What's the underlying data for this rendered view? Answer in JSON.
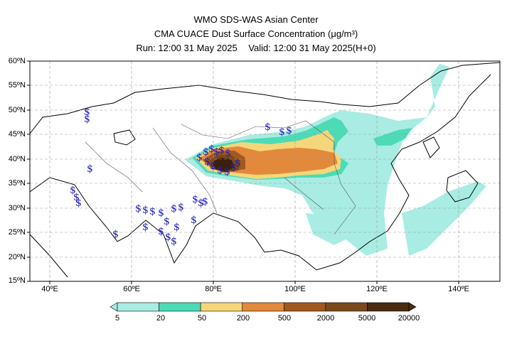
{
  "title": {
    "line1": "WMO SDS-WAS Asian Center",
    "line2": "CMA CUACE Dust Surface Concentration (μg/m³)",
    "run": "Run: 12:00 31 May 2025",
    "valid": "Valid: 12:00 31 May 2025(H+0)"
  },
  "map": {
    "lon_range": [
      35,
      150
    ],
    "lat_range": [
      15,
      60
    ],
    "lat_labels": [
      "60ºN",
      "55ºN",
      "50ºN",
      "45ºN",
      "40ºN",
      "35ºN",
      "30ºN",
      "25ºN",
      "20ºN",
      "15ºN"
    ],
    "lon_labels": [
      "40ºE",
      "60ºE",
      "80ºE",
      "100ºE",
      "120ºE",
      "140ºE"
    ],
    "dust_storm_symbol": "$",
    "dust_storm_symbol_color": "#2020c0",
    "coastline_color": "#000000",
    "gridline_style": "dashed"
  },
  "colorbar": {
    "labels": [
      "5",
      "20",
      "50",
      "200",
      "500",
      "2000",
      "5000",
      "20000"
    ],
    "colors": [
      "#a8ece3",
      "#4ddbb5",
      "#f4d77b",
      "#e2893c",
      "#a2581d",
      "#7c4a1a",
      "#4a2c10"
    ]
  }
}
